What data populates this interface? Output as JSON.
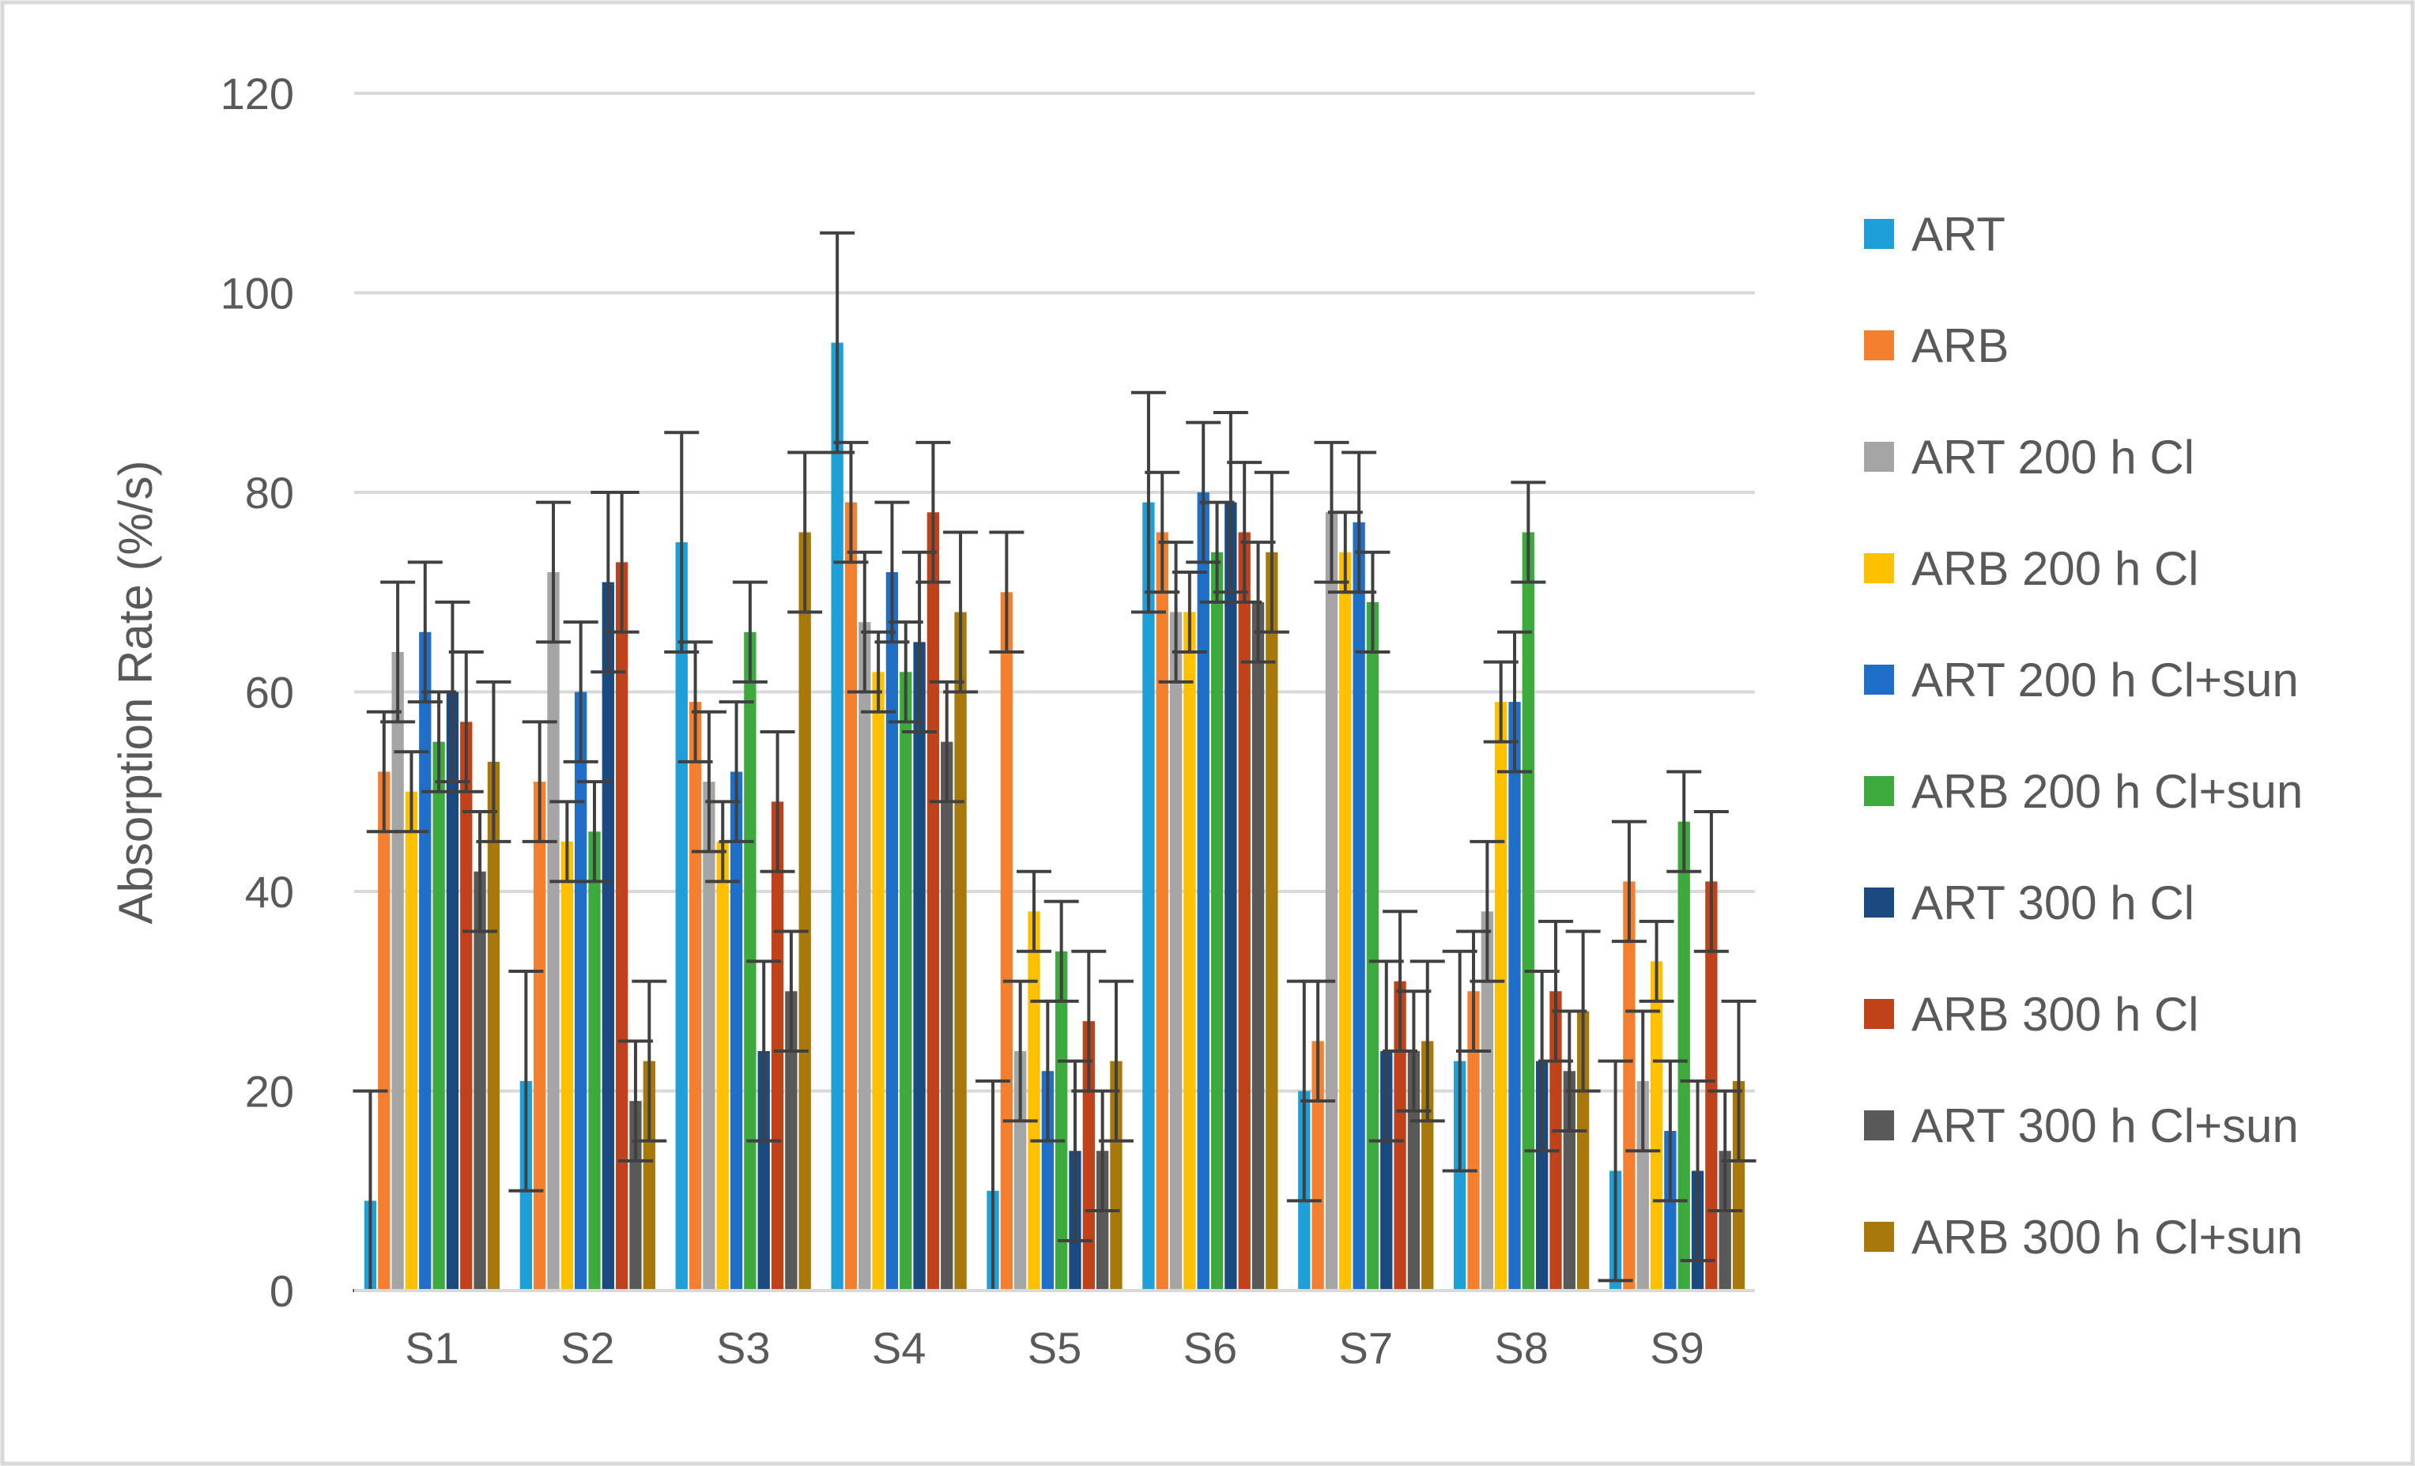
{
  "chart_data": {
    "type": "bar",
    "title": "",
    "xlabel": "",
    "ylabel": "Absorption Rate (%/s)",
    "ylim": [
      0,
      120
    ],
    "yticks": [
      0,
      20,
      40,
      60,
      80,
      100,
      120
    ],
    "grid": true,
    "legend_position": "right",
    "error_bars": true,
    "categories": [
      "S1",
      "S2",
      "S3",
      "S4",
      "S5",
      "S6",
      "S7",
      "S8",
      "S9"
    ],
    "series": [
      {
        "name": "ART",
        "color": "#1f9fd8",
        "values": [
          9,
          21,
          75,
          95,
          10,
          79,
          20,
          23,
          12
        ],
        "errors": [
          11,
          11,
          11,
          11,
          11,
          11,
          11,
          11,
          11
        ]
      },
      {
        "name": "ARB",
        "color": "#f4802f",
        "values": [
          52,
          51,
          59,
          79,
          70,
          76,
          25,
          30,
          41
        ],
        "errors": [
          6,
          6,
          6,
          6,
          6,
          6,
          6,
          6,
          6
        ]
      },
      {
        "name": "ART 200 h Cl",
        "color": "#a5a5a5",
        "values": [
          64,
          72,
          51,
          67,
          24,
          68,
          78,
          38,
          21
        ],
        "errors": [
          7,
          7,
          7,
          7,
          7,
          7,
          7,
          7,
          7
        ]
      },
      {
        "name": "ARB 200 h Cl",
        "color": "#ffc000",
        "values": [
          50,
          45,
          45,
          62,
          38,
          68,
          74,
          59,
          33
        ],
        "errors": [
          4,
          4,
          4,
          4,
          4,
          4,
          4,
          4,
          4
        ]
      },
      {
        "name": "ART 200 h Cl+sun",
        "color": "#1f6fc8",
        "values": [
          66,
          60,
          52,
          72,
          22,
          80,
          77,
          59,
          16
        ],
        "errors": [
          7,
          7,
          7,
          7,
          7,
          7,
          7,
          7,
          7
        ]
      },
      {
        "name": "ARB 200 h Cl+sun",
        "color": "#3caa3c",
        "values": [
          55,
          46,
          66,
          62,
          34,
          74,
          69,
          76,
          47
        ],
        "errors": [
          5,
          5,
          5,
          5,
          5,
          5,
          5,
          5,
          5
        ]
      },
      {
        "name": "ART 300 h Cl",
        "color": "#1a4a80",
        "values": [
          60,
          71,
          24,
          65,
          14,
          79,
          24,
          23,
          12
        ],
        "errors": [
          9,
          9,
          9,
          9,
          9,
          9,
          9,
          9,
          9
        ]
      },
      {
        "name": "ARB 300 h Cl",
        "color": "#c0421a",
        "values": [
          57,
          73,
          49,
          78,
          27,
          76,
          31,
          30,
          41
        ],
        "errors": [
          7,
          7,
          7,
          7,
          7,
          7,
          7,
          7,
          7
        ]
      },
      {
        "name": "ART 300 h Cl+sun",
        "color": "#595959",
        "values": [
          42,
          19,
          30,
          55,
          14,
          69,
          24,
          22,
          14
        ],
        "errors": [
          6,
          6,
          6,
          6,
          6,
          6,
          6,
          6,
          6
        ]
      },
      {
        "name": "ARB 300 h Cl+sun",
        "color": "#a8780a",
        "values": [
          53,
          23,
          76,
          68,
          23,
          74,
          25,
          28,
          21
        ],
        "errors": [
          8,
          8,
          8,
          8,
          8,
          8,
          8,
          8,
          8
        ]
      }
    ]
  }
}
